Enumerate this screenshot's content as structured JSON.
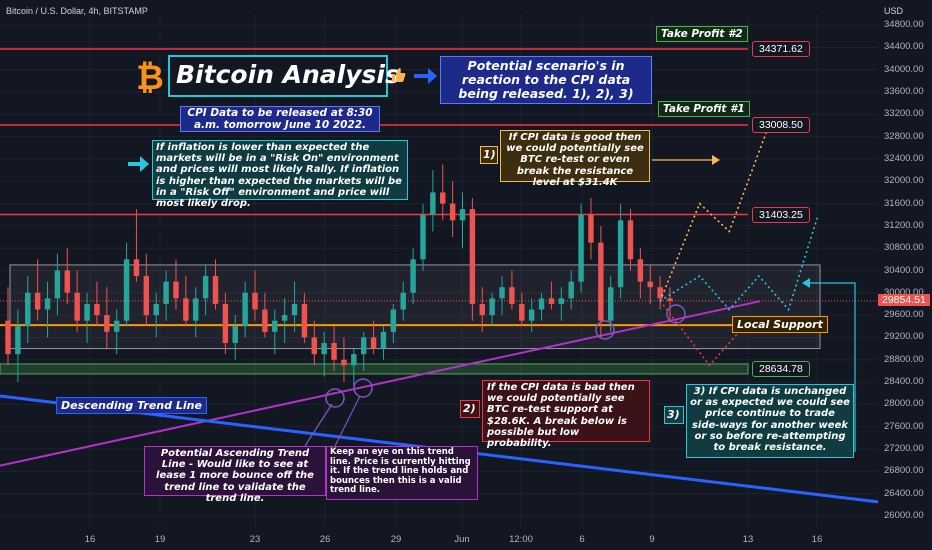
{
  "header": {
    "symbol": "Bitcoin / U.S. Dollar, 4h, BITSTAMP",
    "currency": "USD"
  },
  "colors": {
    "background": "#131722",
    "bull": "#26a69a",
    "bear": "#ef5350",
    "resistance": "#f23645",
    "support": "#ff9800",
    "trend_up": "#b233c9",
    "trend_down": "#2962ff",
    "range_box": "#9598a1",
    "teal": "#26c6da",
    "green": "#4caf50"
  },
  "title": "Bitcoin Analysis",
  "icons": {
    "bitcoin": "bitcoin-logo-icon",
    "thumb": "thumbs-up-icon",
    "arrow_blue": "arrow-right-icon",
    "arrow_teal": "arrow-right-icon"
  },
  "annotations": {
    "scenario_intro": "Potential scenario's in reaction to the CPI data being released. 1), 2), 3)",
    "cpi_release": "CPI Data to be released at 8:30 a.m. tomorrow June 10 2022.",
    "inflation_note": "If inflation is lower than expected the markets will be in a \"Risk On\" environment and prices will most likely Rally. If inflation is higher than expected the markets will be in a \"Risk Off\" environment and price will most likely drop.",
    "scenario1_num": "1)",
    "scenario1_text": "If CPI data is good then we could potentially see BTC re-test or even break the resistance level at $31.4K",
    "scenario2_num": "2)",
    "scenario2_text": "If the CPI data is bad then we could potentially see BTC re-test support at $28.6K. A break below is possible but low probability.",
    "scenario3_num": "3)",
    "scenario3_text": "3) If CPI data is unchanged or as expected we could see price continue to trade side-ways for another week or so before re-attempting to break resistance.",
    "ascending_note": "Potential Ascending Trend Line - Would like to see at lease 1 more bounce off the trend line to validate the trend line.",
    "trendline_note": "Keep an eye on this trend line. Price is currently hitting it. If the trend line holds and bounces then this is a valid trend line.",
    "descending_label": "Descending Trend Line",
    "local_support": "Local Support",
    "take_profit_1": "Take Profit #1",
    "take_profit_2": "Take Profit #2"
  },
  "chart_data": {
    "type": "candlestick",
    "yrange": [
      25800,
      35000
    ],
    "y_ticks": [
      26000,
      26400,
      26800,
      27200,
      27600,
      28000,
      28400,
      28800,
      29200,
      29600,
      30000,
      30400,
      30800,
      31200,
      31600,
      32000,
      32400,
      32800,
      33200,
      33600,
      34000,
      34400,
      34800
    ],
    "y_tick_labels": [
      "26000.00",
      "26400.00",
      "26800.00",
      "27200.00",
      "27600.00",
      "28000.00",
      "28400.00",
      "28800.00",
      "29200.00",
      "29600.00",
      "30000.00",
      "30400.00",
      "30800.00",
      "31200.00",
      "31600.00",
      "32000.00",
      "32400.00",
      "32800.00",
      "33200.00",
      "33600.00",
      "34000.00",
      "34400.00",
      "34800.00"
    ],
    "x_tick_labels": [
      "16",
      "19",
      "23",
      "26",
      "29",
      "Jun",
      "12:00",
      "6",
      "9",
      "13",
      "16"
    ],
    "levels": [
      {
        "price": 34371.62,
        "label": "34371.62",
        "kind": "resistance"
      },
      {
        "price": 33008.5,
        "label": "33008.50",
        "kind": "resistance"
      },
      {
        "price": 31403.25,
        "label": "31403.25",
        "kind": "resistance"
      },
      {
        "price": 29420,
        "label": "",
        "kind": "support"
      },
      {
        "price": 28634.78,
        "label": "28634.78",
        "kind": "support"
      }
    ],
    "current_price": 29854.51,
    "current_price_label": "29854.51",
    "range_box": [
      29000,
      30500
    ],
    "candles": [
      {
        "o": 29500,
        "h": 30100,
        "l": 28700,
        "c": 28900
      },
      {
        "o": 28900,
        "h": 29700,
        "l": 28400,
        "c": 29400
      },
      {
        "o": 29400,
        "h": 30300,
        "l": 29100,
        "c": 30000
      },
      {
        "o": 30000,
        "h": 30600,
        "l": 29500,
        "c": 29700
      },
      {
        "o": 29700,
        "h": 30200,
        "l": 29200,
        "c": 29900
      },
      {
        "o": 29900,
        "h": 30700,
        "l": 29600,
        "c": 30400
      },
      {
        "o": 30400,
        "h": 30800,
        "l": 29800,
        "c": 30000
      },
      {
        "o": 30000,
        "h": 30400,
        "l": 29300,
        "c": 29500
      },
      {
        "o": 29500,
        "h": 30000,
        "l": 29100,
        "c": 29800
      },
      {
        "o": 29800,
        "h": 30200,
        "l": 29400,
        "c": 29600
      },
      {
        "o": 29600,
        "h": 30100,
        "l": 29000,
        "c": 29300
      },
      {
        "o": 29300,
        "h": 29700,
        "l": 28900,
        "c": 29500
      },
      {
        "o": 29500,
        "h": 30900,
        "l": 29400,
        "c": 30600
      },
      {
        "o": 30600,
        "h": 31500,
        "l": 30200,
        "c": 30300
      },
      {
        "o": 30300,
        "h": 30700,
        "l": 29400,
        "c": 29600
      },
      {
        "o": 29600,
        "h": 30000,
        "l": 29200,
        "c": 29800
      },
      {
        "o": 29800,
        "h": 30400,
        "l": 29500,
        "c": 30200
      },
      {
        "o": 30200,
        "h": 30600,
        "l": 29700,
        "c": 29900
      },
      {
        "o": 29900,
        "h": 30300,
        "l": 29400,
        "c": 29500
      },
      {
        "o": 29500,
        "h": 30100,
        "l": 29200,
        "c": 29900
      },
      {
        "o": 29900,
        "h": 30500,
        "l": 29600,
        "c": 30300
      },
      {
        "o": 30300,
        "h": 30600,
        "l": 29700,
        "c": 29800
      },
      {
        "o": 29800,
        "h": 30000,
        "l": 28900,
        "c": 29100
      },
      {
        "o": 29100,
        "h": 29600,
        "l": 28800,
        "c": 29400
      },
      {
        "o": 29400,
        "h": 30200,
        "l": 29200,
        "c": 30000
      },
      {
        "o": 30000,
        "h": 30400,
        "l": 29500,
        "c": 29700
      },
      {
        "o": 29700,
        "h": 30000,
        "l": 29200,
        "c": 29300
      },
      {
        "o": 29300,
        "h": 29700,
        "l": 28900,
        "c": 29500
      },
      {
        "o": 29500,
        "h": 29900,
        "l": 29100,
        "c": 29600
      },
      {
        "o": 29600,
        "h": 30200,
        "l": 29300,
        "c": 29800
      },
      {
        "o": 29800,
        "h": 30000,
        "l": 29100,
        "c": 29200
      },
      {
        "o": 29200,
        "h": 29500,
        "l": 28700,
        "c": 28900
      },
      {
        "o": 28900,
        "h": 29300,
        "l": 28500,
        "c": 29100
      },
      {
        "o": 29100,
        "h": 29400,
        "l": 28600,
        "c": 28800
      },
      {
        "o": 28800,
        "h": 29200,
        "l": 28400,
        "c": 28700
      },
      {
        "o": 28700,
        "h": 29000,
        "l": 28300,
        "c": 28900
      },
      {
        "o": 28900,
        "h": 29300,
        "l": 28600,
        "c": 29200
      },
      {
        "o": 29200,
        "h": 29500,
        "l": 28900,
        "c": 29000
      },
      {
        "o": 29000,
        "h": 29400,
        "l": 28800,
        "c": 29300
      },
      {
        "o": 29300,
        "h": 29800,
        "l": 29100,
        "c": 29700
      },
      {
        "o": 29700,
        "h": 30200,
        "l": 29500,
        "c": 30000
      },
      {
        "o": 30000,
        "h": 30800,
        "l": 29800,
        "c": 30600
      },
      {
        "o": 30600,
        "h": 31600,
        "l": 30400,
        "c": 31400
      },
      {
        "o": 31400,
        "h": 32200,
        "l": 31100,
        "c": 31800
      },
      {
        "o": 31800,
        "h": 32300,
        "l": 31300,
        "c": 31600
      },
      {
        "o": 31600,
        "h": 32000,
        "l": 31000,
        "c": 31300
      },
      {
        "o": 31300,
        "h": 31800,
        "l": 30800,
        "c": 31500
      },
      {
        "o": 31500,
        "h": 31700,
        "l": 29500,
        "c": 29800
      },
      {
        "o": 29800,
        "h": 30100,
        "l": 29300,
        "c": 29600
      },
      {
        "o": 29600,
        "h": 30000,
        "l": 29400,
        "c": 29900
      },
      {
        "o": 29900,
        "h": 30300,
        "l": 29600,
        "c": 30100
      },
      {
        "o": 30100,
        "h": 30400,
        "l": 29700,
        "c": 29800
      },
      {
        "o": 29800,
        "h": 30000,
        "l": 29400,
        "c": 29500
      },
      {
        "o": 29500,
        "h": 29900,
        "l": 29300,
        "c": 29700
      },
      {
        "o": 29700,
        "h": 30000,
        "l": 29500,
        "c": 29900
      },
      {
        "o": 29900,
        "h": 30200,
        "l": 29700,
        "c": 29800
      },
      {
        "o": 29800,
        "h": 30100,
        "l": 29500,
        "c": 29900
      },
      {
        "o": 29900,
        "h": 30400,
        "l": 29700,
        "c": 30200
      },
      {
        "o": 30200,
        "h": 31600,
        "l": 30000,
        "c": 31400
      },
      {
        "o": 31400,
        "h": 31700,
        "l": 30600,
        "c": 30900
      },
      {
        "o": 30900,
        "h": 31200,
        "l": 29200,
        "c": 29500
      },
      {
        "o": 29500,
        "h": 30300,
        "l": 29300,
        "c": 30100
      },
      {
        "o": 30100,
        "h": 31600,
        "l": 29900,
        "c": 31300
      },
      {
        "o": 31300,
        "h": 31500,
        "l": 30400,
        "c": 30600
      },
      {
        "o": 30600,
        "h": 30800,
        "l": 29900,
        "c": 30200
      },
      {
        "o": 30200,
        "h": 30500,
        "l": 29800,
        "c": 30100
      },
      {
        "o": 30100,
        "h": 30300,
        "l": 29700,
        "c": 29900
      },
      {
        "o": 29900,
        "h": 30100,
        "l": 29500,
        "c": 29850
      }
    ],
    "projections": [
      {
        "name": "scenario-1",
        "color": "#ffb74d",
        "points": [
          [
            66,
            29854
          ],
          [
            70,
            31600
          ],
          [
            73,
            31100
          ],
          [
            77,
            33000
          ]
        ]
      },
      {
        "name": "scenario-2",
        "color": "#f23645",
        "points": [
          [
            66,
            29854
          ],
          [
            71,
            28700
          ],
          [
            75,
            29500
          ]
        ]
      },
      {
        "name": "scenario-3",
        "color": "#26c6da",
        "points": [
          [
            66,
            29854
          ],
          [
            70,
            30300
          ],
          [
            73,
            29700
          ],
          [
            76,
            30300
          ],
          [
            79,
            29700
          ],
          [
            82,
            31400
          ]
        ]
      }
    ]
  }
}
